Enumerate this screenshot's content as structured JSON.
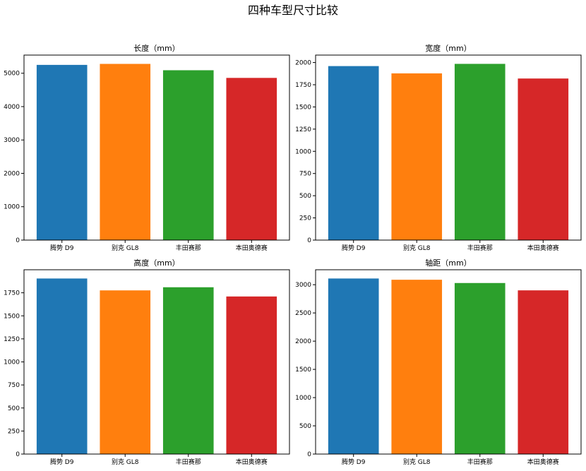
{
  "figure": {
    "title": "四种车型尺寸比较"
  },
  "chart_data": [
    {
      "type": "bar",
      "title": "长度（mm）",
      "categories": [
        "腾势 D9",
        "别克 GL8",
        "丰田赛那",
        "本田奥德赛"
      ],
      "values": [
        5250,
        5280,
        5090,
        4860
      ],
      "colors": [
        "#1f77b4",
        "#ff7f0e",
        "#2ca02c",
        "#d62728"
      ],
      "ylim": [
        0,
        5544
      ],
      "yticks": [
        0,
        1000,
        2000,
        3000,
        4000,
        5000
      ],
      "xlabel": "",
      "ylabel": "",
      "grid": false
    },
    {
      "type": "bar",
      "title": "宽度（mm）",
      "categories": [
        "腾势 D9",
        "别克 GL8",
        "丰田赛那",
        "本田奥德赛"
      ],
      "values": [
        1960,
        1878,
        1985,
        1820
      ],
      "colors": [
        "#1f77b4",
        "#ff7f0e",
        "#2ca02c",
        "#d62728"
      ],
      "ylim": [
        0,
        2084
      ],
      "yticks": [
        0,
        250,
        500,
        750,
        1000,
        1250,
        1500,
        1750,
        2000
      ],
      "xlabel": "",
      "ylabel": "",
      "grid": false
    },
    {
      "type": "bar",
      "title": "高度（mm）",
      "categories": [
        "腾势 D9",
        "别克 GL8",
        "丰田赛那",
        "本田奥德赛"
      ],
      "values": [
        1905,
        1776,
        1810,
        1710
      ],
      "colors": [
        "#1f77b4",
        "#ff7f0e",
        "#2ca02c",
        "#d62728"
      ],
      "ylim": [
        0,
        2000
      ],
      "yticks": [
        0,
        250,
        500,
        750,
        1000,
        1250,
        1500,
        1750
      ],
      "xlabel": "",
      "ylabel": "",
      "grid": false
    },
    {
      "type": "bar",
      "title": "轴距（mm）",
      "categories": [
        "腾势 D9",
        "别克 GL8",
        "丰田赛那",
        "本田奥德赛"
      ],
      "values": [
        3110,
        3088,
        3030,
        2900
      ],
      "colors": [
        "#1f77b4",
        "#ff7f0e",
        "#2ca02c",
        "#d62728"
      ],
      "ylim": [
        0,
        3265
      ],
      "yticks": [
        0,
        500,
        1000,
        1500,
        2000,
        2500,
        3000
      ],
      "xlabel": "",
      "ylabel": "",
      "grid": false
    }
  ]
}
